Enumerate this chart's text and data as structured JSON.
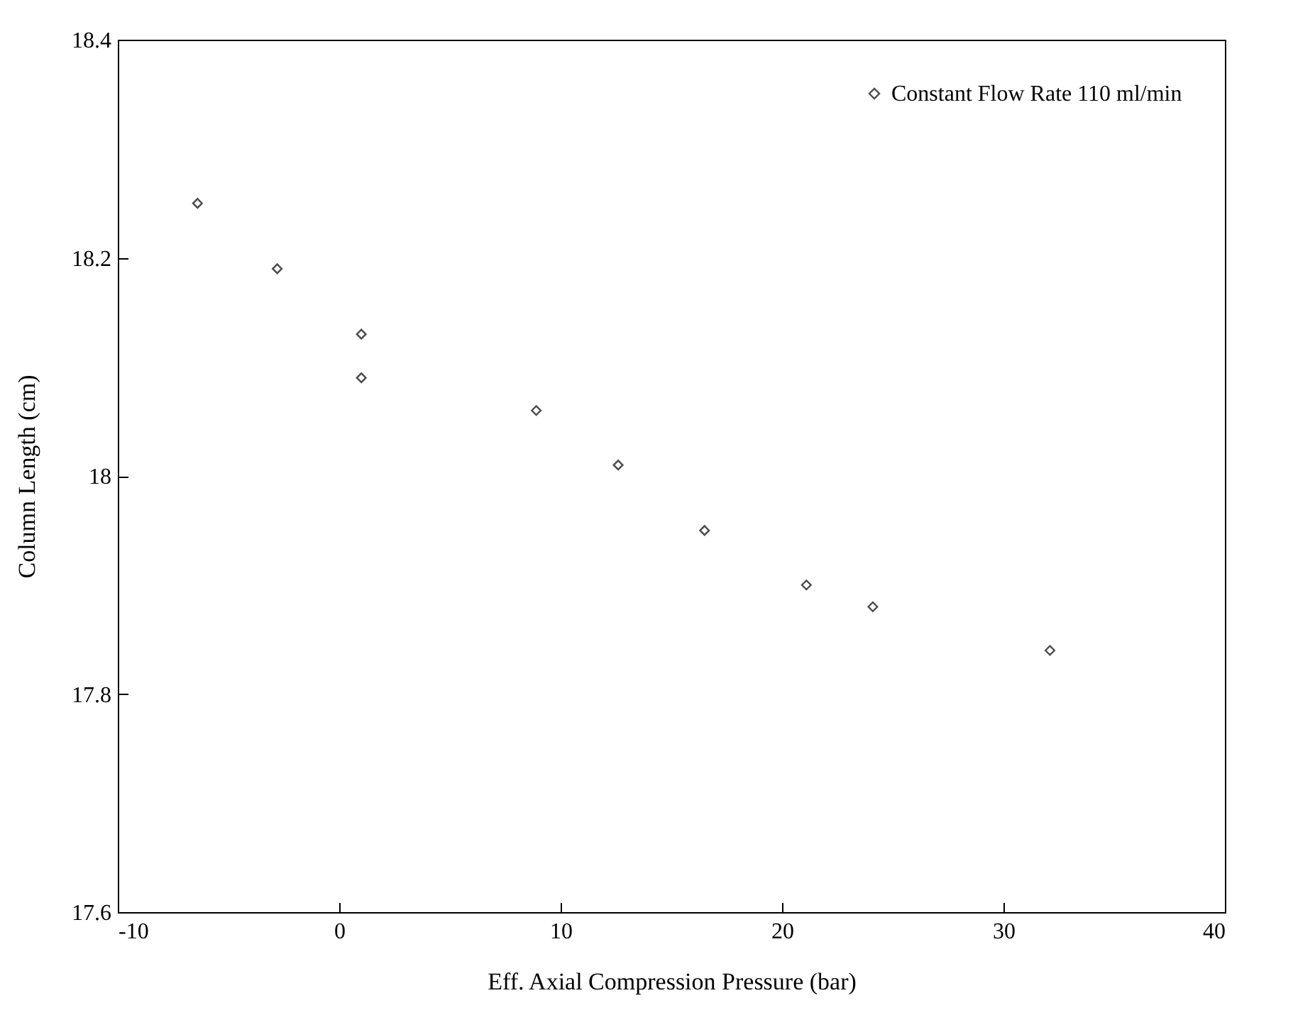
{
  "chart_data": {
    "type": "scatter",
    "xlabel": "Eff. Axial Compression Pressure (bar)",
    "ylabel": "Column Length (cm)",
    "x": [
      -6.4,
      -2.8,
      1.0,
      1.0,
      8.9,
      12.6,
      16.5,
      21.1,
      24.1,
      32.1
    ],
    "series": [
      {
        "name": "Constant Flow Rate 110 ml/min",
        "color": "#000000",
        "values": [
          18.25,
          18.19,
          18.13,
          18.09,
          18.06,
          18.01,
          17.95,
          17.9,
          17.88,
          17.84
        ]
      }
    ],
    "xlim": [
      -10,
      40
    ],
    "xticks": [
      -10,
      0,
      10,
      20,
      30,
      40
    ],
    "ylim": [
      17.6,
      18.4
    ],
    "yticks": [
      17.6,
      17.8,
      18,
      18.2,
      18.4
    ],
    "marker": "diamond",
    "legend": "top right",
    "grid": false
  }
}
